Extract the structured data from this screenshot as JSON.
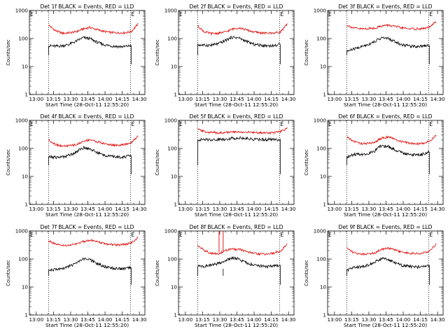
{
  "chart_data": [
    {
      "type": "line",
      "title": "Det 1f BLACK = Events, RED = LLD",
      "ylabel": "Counts/sec",
      "xlabel": "Start Time (28-Oct-11 12:55:20)",
      "x_ticks": [
        "13:00",
        "13:15",
        "13:30",
        "13:45",
        "14:00",
        "14:15",
        "14:30"
      ],
      "y_ticks": [
        "1",
        "10",
        "100",
        "1000"
      ],
      "y_scale": "log",
      "ylim": [
        1,
        1000
      ],
      "markers": [
        "E",
        "E"
      ],
      "series": [
        {
          "color": "#000000",
          "x": [
            13.18,
            13.28,
            13.38,
            13.48,
            13.58,
            13.68,
            13.78,
            13.88,
            13.98,
            14.08,
            14.18,
            14.28,
            14.38
          ],
          "values": [
            55,
            53,
            55,
            62,
            80,
            108,
            100,
            75,
            60,
            55,
            52,
            51,
            56
          ]
        },
        {
          "color": "#dd0000",
          "x": [
            13.18,
            13.28,
            13.38,
            13.48,
            13.58,
            13.68,
            13.78,
            13.88,
            13.98,
            14.08,
            14.18,
            14.28,
            14.38,
            14.48
          ],
          "values": [
            300,
            190,
            155,
            160,
            175,
            220,
            250,
            210,
            180,
            165,
            160,
            160,
            175,
            330
          ]
        }
      ]
    },
    {
      "type": "line",
      "title": "Det 2f BLACK = Events, RED = LLD",
      "ylabel": "Counts/sec",
      "xlabel": "Start Time (28-Oct-11 12:55:20)",
      "x_ticks": [
        "13:00",
        "13:15",
        "13:30",
        "13:45",
        "14:00",
        "14:15",
        "14:30"
      ],
      "y_ticks": [
        "1",
        "10",
        "100",
        "1000"
      ],
      "y_scale": "log",
      "ylim": [
        1,
        1000
      ],
      "markers": [
        "E",
        "E"
      ],
      "series": [
        {
          "color": "#000000",
          "x": [
            13.18,
            13.28,
            13.38,
            13.48,
            13.58,
            13.68,
            13.78,
            13.88,
            13.98,
            14.08,
            14.18,
            14.28,
            14.38
          ],
          "values": [
            60,
            57,
            58,
            65,
            85,
            112,
            105,
            80,
            64,
            58,
            56,
            55,
            62
          ]
        },
        {
          "color": "#dd0000",
          "x": [
            13.18,
            13.28,
            13.38,
            13.48,
            13.58,
            13.68,
            13.78,
            13.88,
            13.98,
            14.08,
            14.18,
            14.28,
            14.38,
            14.48
          ],
          "values": [
            280,
            170,
            150,
            155,
            170,
            215,
            245,
            205,
            175,
            160,
            155,
            158,
            170,
            320
          ]
        }
      ]
    },
    {
      "type": "line",
      "title": "Det 3f BLACK = Events, RED = LLD",
      "ylabel": "Counts/sec",
      "xlabel": "Start Time (28-Oct-11 12:55:20)",
      "x_ticks": [
        "13:00",
        "13:15",
        "13:30",
        "13:45",
        "14:00",
        "14:15",
        "14:30"
      ],
      "y_ticks": [
        "1",
        "10",
        "100",
        "1000"
      ],
      "y_scale": "log",
      "ylim": [
        1,
        1000
      ],
      "markers": [
        "E",
        "E"
      ],
      "series": [
        {
          "color": "#000000",
          "x": [
            13.18,
            13.28,
            13.38,
            13.48,
            13.58,
            13.68,
            13.78,
            13.88,
            13.98,
            14.08,
            14.18,
            14.28,
            14.38
          ],
          "values": [
            35,
            42,
            50,
            60,
            78,
            105,
            100,
            78,
            60,
            55,
            52,
            55,
            58
          ]
        },
        {
          "color": "#dd0000",
          "x": [
            13.18,
            13.28,
            13.38,
            13.48,
            13.58,
            13.68,
            13.78,
            13.88,
            13.98,
            14.08,
            14.18,
            14.28,
            14.38,
            14.48
          ],
          "values": [
            300,
            240,
            220,
            225,
            235,
            280,
            300,
            270,
            240,
            225,
            220,
            225,
            250,
            400
          ]
        }
      ]
    },
    {
      "type": "line",
      "title": "Det 4f BLACK = Events, RED = LLD",
      "ylabel": "Counts/sec",
      "xlabel": "Start Time (28-Oct-11 12:55:20)",
      "x_ticks": [
        "13:00",
        "13:15",
        "13:30",
        "13:45",
        "14:00",
        "14:15",
        "14:30"
      ],
      "y_ticks": [
        "1",
        "10",
        "100",
        "1000"
      ],
      "y_scale": "log",
      "ylim": [
        1,
        1000
      ],
      "markers": [
        "E",
        "E"
      ],
      "series": [
        {
          "color": "#000000",
          "x": [
            13.18,
            13.28,
            13.38,
            13.48,
            13.58,
            13.68,
            13.78,
            13.88,
            13.98,
            14.08,
            14.18,
            14.28,
            14.38
          ],
          "values": [
            50,
            48,
            50,
            58,
            75,
            105,
            98,
            72,
            58,
            52,
            50,
            50,
            55
          ]
        },
        {
          "color": "#dd0000",
          "x": [
            13.18,
            13.28,
            13.38,
            13.48,
            13.58,
            13.68,
            13.78,
            13.88,
            13.98,
            14.08,
            14.18,
            14.28,
            14.38,
            14.48
          ],
          "values": [
            200,
            140,
            120,
            125,
            135,
            175,
            210,
            175,
            150,
            135,
            130,
            135,
            160,
            280
          ]
        }
      ]
    },
    {
      "type": "line",
      "title": "Det 5f BLACK = Events, RED = LLD",
      "ylabel": "Counts/sec",
      "xlabel": "Start Time (28-Oct-11 12:55:20)",
      "x_ticks": [
        "13:00",
        "13:15",
        "13:30",
        "13:45",
        "14:00",
        "14:15",
        "14:30"
      ],
      "y_ticks": [
        "1",
        "10",
        "100",
        "1000"
      ],
      "y_scale": "log",
      "ylim": [
        1,
        1000
      ],
      "markers": [
        "E",
        "E"
      ],
      "series": [
        {
          "color": "#000000",
          "x": [
            13.18,
            13.28,
            13.38,
            13.48,
            13.58,
            13.68,
            13.78,
            13.88,
            13.98,
            14.08,
            14.18,
            14.28,
            14.38
          ],
          "values": [
            205,
            205,
            205,
            210,
            215,
            230,
            240,
            228,
            215,
            210,
            208,
            208,
            210
          ]
        },
        {
          "color": "#dd0000",
          "x": [
            13.18,
            13.28,
            13.38,
            13.48,
            13.58,
            13.68,
            13.78,
            13.88,
            13.98,
            14.08,
            14.18,
            14.28,
            14.38,
            14.48
          ],
          "values": [
            480,
            400,
            370,
            365,
            370,
            380,
            390,
            380,
            370,
            365,
            360,
            365,
            390,
            520
          ]
        }
      ]
    },
    {
      "type": "line",
      "title": "Det 6f BLACK = Events, RED = LLD",
      "ylabel": "Counts/sec",
      "xlabel": "Start Time (28-Oct-11 12:55:20)",
      "x_ticks": [
        "13:00",
        "13:15",
        "13:30",
        "13:45",
        "14:00",
        "14:15",
        "14:30"
      ],
      "y_ticks": [
        "1",
        "10",
        "100",
        "1000"
      ],
      "y_scale": "log",
      "ylim": [
        1,
        1000
      ],
      "markers": [
        "E",
        "E"
      ],
      "series": [
        {
          "color": "#000000",
          "x": [
            13.18,
            13.28,
            13.38,
            13.48,
            13.58,
            13.68,
            13.78,
            13.88,
            13.98,
            14.08,
            14.18,
            14.28,
            14.38
          ],
          "values": [
            50,
            60,
            62,
            65,
            80,
            125,
            118,
            90,
            70,
            62,
            58,
            62,
            75
          ]
        },
        {
          "color": "#dd0000",
          "x": [
            13.18,
            13.28,
            13.38,
            13.48,
            13.58,
            13.68,
            13.78,
            13.88,
            13.98,
            14.08,
            14.18,
            14.28,
            14.38,
            14.48
          ],
          "values": [
            250,
            180,
            150,
            150,
            165,
            230,
            260,
            210,
            175,
            155,
            145,
            150,
            180,
            290
          ]
        }
      ]
    },
    {
      "type": "line",
      "title": "Det 7f BLACK = Events, RED = LLD",
      "ylabel": "Counts/sec",
      "xlabel": "Start Time (28-Oct-11 12:55:20)",
      "x_ticks": [
        "13:00",
        "13:15",
        "13:30",
        "13:45",
        "14:00",
        "14:15",
        "14:30"
      ],
      "y_ticks": [
        "1",
        "10",
        "100",
        "1000"
      ],
      "y_scale": "log",
      "ylim": [
        1,
        1000
      ],
      "markers": [
        "E",
        "E"
      ],
      "series": [
        {
          "color": "#000000",
          "x": [
            13.18,
            13.28,
            13.38,
            13.48,
            13.58,
            13.68,
            13.78,
            13.88,
            13.98,
            14.08,
            14.18,
            14.28,
            14.38
          ],
          "values": [
            40,
            42,
            45,
            55,
            70,
            100,
            95,
            70,
            55,
            48,
            45,
            45,
            50
          ]
        },
        {
          "color": "#dd0000",
          "x": [
            13.18,
            13.28,
            13.38,
            13.48,
            13.58,
            13.68,
            13.78,
            13.88,
            13.98,
            14.08,
            14.18,
            14.28,
            14.38,
            14.48
          ],
          "values": [
            450,
            330,
            300,
            310,
            340,
            420,
            480,
            410,
            360,
            330,
            320,
            330,
            370,
            600
          ]
        }
      ]
    },
    {
      "type": "line",
      "title": "Det 8f BLACK = Events, RED = LLD",
      "ylabel": "Counts/sec",
      "xlabel": "Start Time (28-Oct-11 12:55:20)",
      "x_ticks": [
        "13:00",
        "13:15",
        "13:30",
        "13:45",
        "14:00",
        "14:15",
        "14:30"
      ],
      "y_ticks": [
        "1",
        "10",
        "100",
        "1000"
      ],
      "y_scale": "log",
      "ylim": [
        1,
        1000
      ],
      "markers": [
        "E",
        "E"
      ],
      "series": [
        {
          "color": "#000000",
          "x": [
            13.18,
            13.28,
            13.38,
            13.48,
            13.58,
            13.68,
            13.78,
            13.88,
            13.98,
            14.08,
            14.18,
            14.28,
            14.38
          ],
          "values": [
            55,
            55,
            60,
            70,
            85,
            110,
            100,
            75,
            62,
            56,
            54,
            55,
            60
          ]
        },
        {
          "color": "#dd0000",
          "x": [
            13.18,
            13.28,
            13.38,
            13.48,
            13.58,
            13.68,
            13.78,
            13.88,
            13.98,
            14.08,
            14.18,
            14.28,
            14.38,
            14.48
          ],
          "values": [
            300,
            200,
            160,
            150,
            200,
            230,
            220,
            190,
            160,
            150,
            150,
            160,
            190,
            330
          ]
        }
      ]
    },
    {
      "type": "line",
      "title": "Det 9f BLACK = Events, RED = LLD",
      "ylabel": "Counts/sec",
      "xlabel": "Start Time (28-Oct-11 12:55:20)",
      "x_ticks": [
        "13:00",
        "13:15",
        "13:30",
        "13:45",
        "14:00",
        "14:15",
        "14:30"
      ],
      "y_ticks": [
        "1",
        "10",
        "100",
        "1000"
      ],
      "y_scale": "log",
      "ylim": [
        1,
        1000
      ],
      "markers": [
        "E",
        "E"
      ],
      "series": [
        {
          "color": "#000000",
          "x": [
            13.18,
            13.28,
            13.38,
            13.48,
            13.58,
            13.68,
            13.78,
            13.88,
            13.98,
            14.08,
            14.18,
            14.28,
            14.38
          ],
          "values": [
            40,
            48,
            52,
            60,
            75,
            105,
            100,
            75,
            60,
            55,
            52,
            52,
            58
          ]
        },
        {
          "color": "#dd0000",
          "x": [
            13.18,
            13.28,
            13.38,
            13.48,
            13.58,
            13.68,
            13.78,
            13.88,
            13.98,
            14.08,
            14.18,
            14.28,
            14.38,
            14.48
          ],
          "values": [
            250,
            170,
            150,
            155,
            165,
            220,
            250,
            210,
            175,
            160,
            155,
            160,
            190,
            350
          ]
        }
      ]
    }
  ]
}
